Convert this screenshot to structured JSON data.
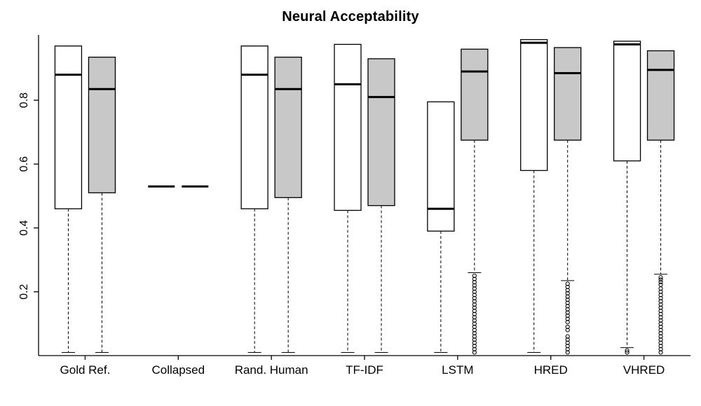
{
  "title": "Neural Acceptability",
  "chart_data": {
    "type": "boxplot",
    "title": "Neural Acceptability",
    "categories": [
      "Gold Ref.",
      "Collapsed",
      "Rand. Human",
      "TF-IDF",
      "LSTM",
      "HRED",
      "VHRED"
    ],
    "ylim": [
      0,
      1.0
    ],
    "yticks": [
      0.2,
      0.4,
      0.6,
      0.8
    ],
    "grid": false,
    "legend": "none",
    "colors": {
      "box_white": "#ffffff",
      "box_gray": "#c8c8c8",
      "stroke": "#000000"
    },
    "series": [
      {
        "name": "white-boxes",
        "fill": "#ffffff",
        "boxes": [
          {
            "low": 0.01,
            "q1": 0.46,
            "median": 0.88,
            "q3": 0.97,
            "high": 0.97,
            "outliers": []
          },
          {
            "low": 0.53,
            "q1": 0.53,
            "median": 0.53,
            "q3": 0.53,
            "high": 0.53,
            "outliers": []
          },
          {
            "low": 0.01,
            "q1": 0.46,
            "median": 0.88,
            "q3": 0.97,
            "high": 0.97,
            "outliers": []
          },
          {
            "low": 0.01,
            "q1": 0.455,
            "median": 0.85,
            "q3": 0.975,
            "high": 0.975,
            "outliers": []
          },
          {
            "low": 0.01,
            "q1": 0.39,
            "median": 0.46,
            "q3": 0.795,
            "high": 0.795,
            "outliers": []
          },
          {
            "low": 0.01,
            "q1": 0.58,
            "median": 0.98,
            "q3": 0.99,
            "high": 0.99,
            "outliers": []
          },
          {
            "low": 0.025,
            "q1": 0.61,
            "median": 0.975,
            "q3": 0.985,
            "high": 0.985,
            "outliers": [
              0.01,
              0.016
            ]
          }
        ]
      },
      {
        "name": "gray-boxes",
        "fill": "#c8c8c8",
        "boxes": [
          {
            "low": 0.01,
            "q1": 0.51,
            "median": 0.835,
            "q3": 0.935,
            "high": 0.935,
            "outliers": []
          },
          {
            "low": 0.53,
            "q1": 0.53,
            "median": 0.53,
            "q3": 0.53,
            "high": 0.53,
            "outliers": []
          },
          {
            "low": 0.01,
            "q1": 0.495,
            "median": 0.835,
            "q3": 0.935,
            "high": 0.935,
            "outliers": []
          },
          {
            "low": 0.01,
            "q1": 0.47,
            "median": 0.81,
            "q3": 0.93,
            "high": 0.93,
            "outliers": []
          },
          {
            "low": 0.26,
            "q1": 0.675,
            "median": 0.89,
            "q3": 0.96,
            "high": 0.96,
            "outliers": [
              0.25,
              0.24,
              0.23,
              0.22,
              0.21,
              0.2,
              0.19,
              0.18,
              0.17,
              0.16,
              0.15,
              0.14,
              0.13,
              0.12,
              0.11,
              0.1,
              0.09,
              0.08,
              0.07,
              0.06,
              0.05,
              0.04,
              0.03,
              0.02,
              0.01
            ]
          },
          {
            "low": 0.235,
            "q1": 0.675,
            "median": 0.885,
            "q3": 0.965,
            "high": 0.965,
            "outliers": [
              0.225,
              0.215,
              0.205,
              0.195,
              0.185,
              0.175,
              0.165,
              0.155,
              0.145,
              0.135,
              0.125,
              0.115,
              0.105,
              0.09,
              0.08,
              0.06,
              0.05,
              0.04,
              0.03,
              0.02,
              0.01
            ]
          },
          {
            "low": 0.255,
            "q1": 0.675,
            "median": 0.895,
            "q3": 0.955,
            "high": 0.955,
            "outliers": [
              0.245,
              0.238,
              0.23,
              0.222,
              0.21,
              0.2,
              0.19,
              0.18,
              0.17,
              0.16,
              0.15,
              0.14,
              0.13,
              0.12,
              0.11,
              0.1,
              0.09,
              0.08,
              0.07,
              0.06,
              0.05,
              0.04,
              0.03,
              0.02,
              0.01
            ]
          }
        ]
      }
    ]
  }
}
